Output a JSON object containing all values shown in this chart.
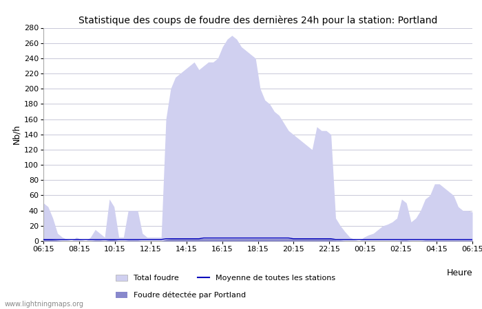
{
  "title": "Statistique des coups de foudre des dernières 24h pour la station: Portland",
  "xlabel": "Heure",
  "ylabel": "Nb/h",
  "ylim": [
    0,
    280
  ],
  "yticks": [
    0,
    20,
    40,
    60,
    80,
    100,
    120,
    140,
    160,
    180,
    200,
    220,
    240,
    260,
    280
  ],
  "x_labels": [
    "06:15",
    "08:15",
    "10:15",
    "12:15",
    "14:15",
    "16:15",
    "18:15",
    "20:15",
    "22:15",
    "00:15",
    "02:15",
    "04:15",
    "06:15"
  ],
  "background_color": "#ffffff",
  "grid_color": "#c8c8d8",
  "fill_total_color": "#d0d0f0",
  "fill_station_color": "#8888cc",
  "line_mean_color": "#0000bb",
  "watermark": "www.lightningmaps.org",
  "total_foudre": [
    50,
    45,
    30,
    10,
    5,
    2,
    0,
    5,
    2,
    0,
    5,
    15,
    10,
    5,
    55,
    45,
    5,
    5,
    40,
    40,
    40,
    10,
    5,
    5,
    5,
    5,
    160,
    200,
    215,
    220,
    225,
    230,
    235,
    225,
    230,
    235,
    235,
    240,
    255,
    265,
    270,
    265,
    255,
    250,
    245,
    240,
    200,
    185,
    180,
    170,
    165,
    155,
    145,
    140,
    135,
    130,
    125,
    120,
    150,
    145,
    145,
    140,
    30,
    20,
    12,
    5,
    2,
    0,
    5,
    8,
    10,
    15,
    20,
    22,
    25,
    30,
    55,
    50,
    25,
    30,
    40,
    55,
    60,
    75,
    75,
    70,
    65,
    60,
    45,
    40,
    40,
    38
  ],
  "station_foudre": [
    3,
    3,
    2,
    1,
    0,
    0,
    0,
    0,
    0,
    0,
    0,
    1,
    1,
    0,
    2,
    2,
    0,
    0,
    1,
    1,
    1,
    0,
    0,
    0,
    0,
    0,
    2,
    3,
    3,
    3,
    3,
    3,
    3,
    3,
    3,
    3,
    3,
    3,
    3,
    3,
    3,
    3,
    3,
    3,
    3,
    3,
    3,
    3,
    3,
    3,
    3,
    3,
    3,
    3,
    3,
    3,
    3,
    3,
    3,
    3,
    3,
    3,
    1,
    1,
    0,
    0,
    0,
    0,
    0,
    0,
    0,
    0,
    0,
    0,
    0,
    0,
    1,
    1,
    0,
    0,
    0,
    1,
    1,
    1,
    1,
    1,
    1,
    1,
    1,
    1,
    1,
    1
  ],
  "mean_line": [
    2,
    2,
    2,
    2,
    2,
    2,
    2,
    2,
    2,
    2,
    2,
    2,
    2,
    2,
    2,
    2,
    2,
    2,
    2,
    2,
    2,
    2,
    2,
    2,
    2,
    2,
    3,
    3,
    3,
    3,
    3,
    3,
    3,
    3,
    4,
    4,
    4,
    4,
    4,
    4,
    4,
    4,
    4,
    4,
    4,
    4,
    4,
    4,
    4,
    4,
    4,
    4,
    4,
    3,
    3,
    3,
    3,
    3,
    3,
    3,
    3,
    3,
    2,
    2,
    2,
    2,
    2,
    2,
    2,
    2,
    2,
    2,
    2,
    2,
    2,
    2,
    2,
    2,
    2,
    2,
    2,
    2,
    2,
    2,
    2,
    2,
    2,
    2,
    2,
    2,
    2,
    2
  ]
}
